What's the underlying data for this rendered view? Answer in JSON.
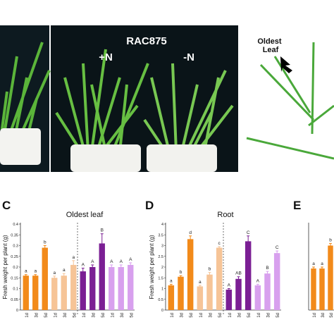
{
  "photos": {
    "cultivar_label": "RAC875",
    "plus_n_label": "+N",
    "minus_n_label": "-N",
    "oldest_leaf_label_line1": "Oldest",
    "oldest_leaf_label_line2": "Leaf"
  },
  "panels": {
    "c": "C",
    "d": "D",
    "e": "E"
  },
  "colors": {
    "orange": "#f28a1a",
    "light_orange": "#f6c497",
    "purple": "#7b1f94",
    "light_purple": "#d8a0ee"
  },
  "chart_data": [
    {
      "type": "bar",
      "title": "Oldest leaf",
      "ylabel": "Fresh weight per plant (g)",
      "ylim": [
        0,
        0.4
      ],
      "yticks": [
        "0",
        "0.05",
        "0.1",
        "0.15",
        "0.2",
        "0.25",
        "0.3",
        "0.35",
        "0.4"
      ],
      "categories": [
        "1d",
        "3d",
        "5d",
        "1d",
        "3d",
        "5d",
        "1d",
        "3d",
        "5d",
        "1d",
        "3d",
        "5d"
      ],
      "values": [
        0.16,
        0.16,
        0.29,
        0.15,
        0.16,
        0.21,
        0.18,
        0.2,
        0.31,
        0.2,
        0.2,
        0.21
      ],
      "errors": [
        0.005,
        0.005,
        0.01,
        0.008,
        0.01,
        0.02,
        0.015,
        0.01,
        0.045,
        0.01,
        0.01,
        0.01
      ],
      "letters": [
        "a",
        "a",
        "b",
        "a",
        "a",
        "a",
        "A",
        "A",
        "B",
        "A",
        "A",
        "A"
      ],
      "color_groups": [
        "orange",
        "orange",
        "orange",
        "light_orange",
        "light_orange",
        "light_orange",
        "purple",
        "purple",
        "purple",
        "light_purple",
        "light_purple",
        "light_purple"
      ]
    },
    {
      "type": "bar",
      "title": "Root",
      "ylabel": "Fresh weight per plant (g)",
      "ylim": [
        0,
        4
      ],
      "yticks": [
        "0",
        "0.5",
        "1",
        "1.5",
        "2",
        "2.5",
        "3",
        "3.5",
        "4"
      ],
      "categories": [
        "1d",
        "3d",
        "5d",
        "1d",
        "3d",
        "5d",
        "1d",
        "3d",
        "5d",
        "1d",
        "3d",
        "5d"
      ],
      "values": [
        1.15,
        1.55,
        3.3,
        1.1,
        1.65,
        2.9,
        0.95,
        1.45,
        3.2,
        1.15,
        1.7,
        2.65
      ],
      "errors": [
        0.05,
        0.05,
        0.15,
        0.05,
        0.1,
        0.05,
        0.05,
        0.1,
        0.25,
        0.05,
        0.1,
        0.1
      ],
      "letters": [
        "a",
        "b",
        "d",
        "a",
        "b",
        "c",
        "A",
        "AB",
        "C",
        "A",
        "B",
        "C"
      ],
      "color_groups": [
        "orange",
        "orange",
        "orange",
        "light_orange",
        "light_orange",
        "light_orange",
        "purple",
        "purple",
        "purple",
        "light_purple",
        "light_purple",
        "light_purple"
      ]
    },
    {
      "type": "bar",
      "title": "",
      "ylabel": "",
      "ylim": [
        0,
        6
      ],
      "yticks": [],
      "categories": [
        "1d",
        "3d",
        "5d"
      ],
      "values": [
        2.9,
        2.9,
        4.5
      ],
      "errors": [
        0.1,
        0.1,
        0.15
      ],
      "letters": [
        "a",
        "a",
        "b"
      ],
      "color_groups": [
        "orange",
        "orange",
        "orange"
      ]
    }
  ]
}
